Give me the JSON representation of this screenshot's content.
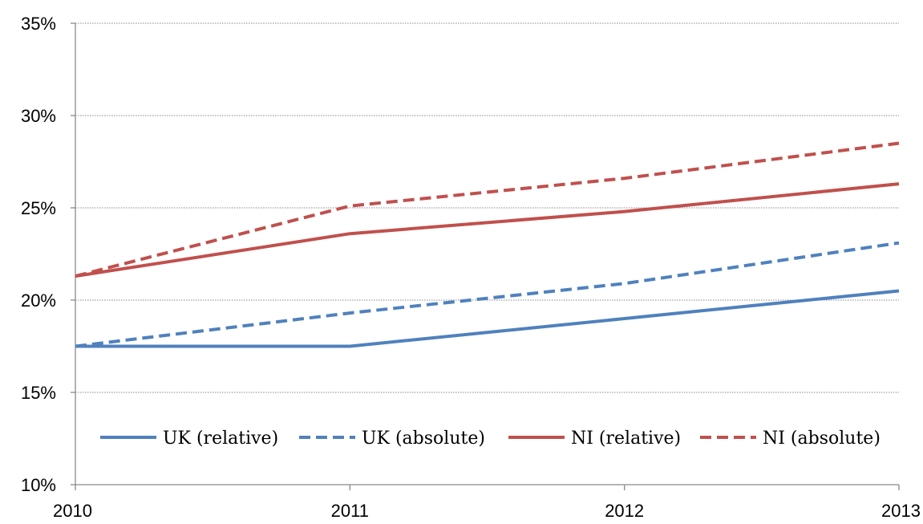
{
  "chart_data": {
    "type": "line",
    "title": "",
    "xlabel": "",
    "ylabel": "",
    "x": [
      "2010",
      "2011",
      "2012",
      "2013"
    ],
    "x_tick_labels": [
      "2010",
      "2011",
      "2012",
      "2013"
    ],
    "y_tick_labels": [
      "10%",
      "15%",
      "20%",
      "25%",
      "30%",
      "35%"
    ],
    "y_ticks": [
      10,
      15,
      20,
      25,
      30,
      35
    ],
    "ylim": [
      10,
      35
    ],
    "y_unit": "%",
    "grid": "horizontal dotted",
    "legend_position": "bottom inside plot area",
    "series": [
      {
        "name": "UK (relative)",
        "values": [
          17.5,
          17.5,
          19.0,
          20.5
        ],
        "color": "#4F81BD",
        "style": "solid"
      },
      {
        "name": "UK (absolute)",
        "values": [
          17.5,
          19.3,
          20.9,
          23.1
        ],
        "color": "#4F81BD",
        "style": "dashed"
      },
      {
        "name": "NI (relative)",
        "values": [
          21.3,
          23.6,
          24.8,
          26.3
        ],
        "color": "#C0504D",
        "style": "solid"
      },
      {
        "name": "NI (absolute)",
        "values": [
          21.3,
          25.1,
          26.6,
          28.5
        ],
        "color": "#C0504D",
        "style": "dashed"
      }
    ]
  }
}
